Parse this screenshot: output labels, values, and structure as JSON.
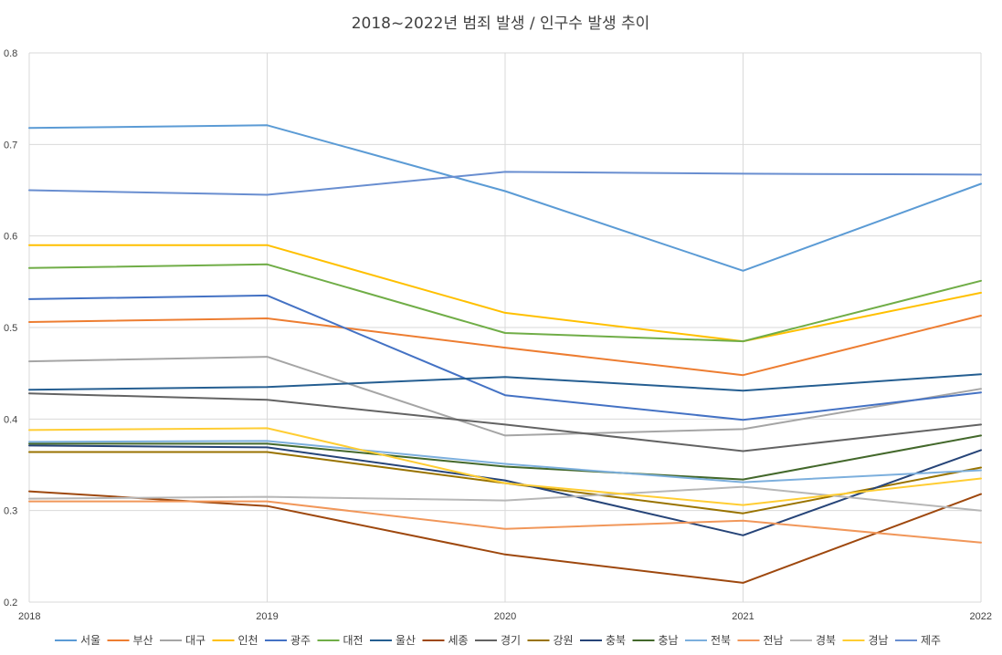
{
  "chart_data": {
    "type": "line",
    "title": "2018~2022년 범죄 발생 / 인구수 발생 추이",
    "x": [
      "2018",
      "2019",
      "2020",
      "2021",
      "2022"
    ],
    "ylim": [
      0.2,
      0.8
    ],
    "yticks": [
      "0.2",
      "0.3",
      "0.4",
      "0.5",
      "0.6",
      "0.7",
      "0.8"
    ],
    "xlabel": "",
    "ylabel": "",
    "grid": {
      "horizontal": true,
      "vertical": true
    },
    "legend_position": "bottom",
    "series": [
      {
        "name": "서울",
        "color": "#5B9BD5",
        "values": [
          0.718,
          0.721,
          0.649,
          0.562,
          0.657
        ]
      },
      {
        "name": "부산",
        "color": "#ED7D31",
        "values": [
          0.506,
          0.51,
          0.478,
          0.448,
          0.513
        ]
      },
      {
        "name": "대구",
        "color": "#A5A5A5",
        "values": [
          0.463,
          0.468,
          0.382,
          0.389,
          0.433
        ]
      },
      {
        "name": "인천",
        "color": "#FFC000",
        "values": [
          0.59,
          0.59,
          0.516,
          0.485,
          0.538
        ]
      },
      {
        "name": "광주",
        "color": "#4472C4",
        "values": [
          0.531,
          0.535,
          0.426,
          0.399,
          0.429
        ]
      },
      {
        "name": "대전",
        "color": "#70AD47",
        "values": [
          0.565,
          0.569,
          0.494,
          0.485,
          0.551
        ]
      },
      {
        "name": "울산",
        "color": "#255E91",
        "values": [
          0.432,
          0.435,
          0.446,
          0.431,
          0.449
        ]
      },
      {
        "name": "세종",
        "color": "#9E480E",
        "values": [
          0.321,
          0.305,
          0.252,
          0.221,
          0.318
        ]
      },
      {
        "name": "경기",
        "color": "#636363",
        "values": [
          0.428,
          0.421,
          0.394,
          0.365,
          0.394
        ]
      },
      {
        "name": "강원",
        "color": "#997300",
        "values": [
          0.364,
          0.364,
          0.33,
          0.297,
          0.347
        ]
      },
      {
        "name": "충북",
        "color": "#264478",
        "values": [
          0.371,
          0.369,
          0.333,
          0.273,
          0.366
        ]
      },
      {
        "name": "충남",
        "color": "#43682B",
        "values": [
          0.373,
          0.373,
          0.348,
          0.334,
          0.382
        ]
      },
      {
        "name": "전북",
        "color": "#7CAFDD",
        "values": [
          0.375,
          0.376,
          0.351,
          0.331,
          0.344
        ]
      },
      {
        "name": "전남",
        "color": "#F1975A",
        "values": [
          0.31,
          0.31,
          0.28,
          0.289,
          0.265
        ]
      },
      {
        "name": "경북",
        "color": "#B7B7B7",
        "values": [
          0.313,
          0.315,
          0.311,
          0.326,
          0.3
        ]
      },
      {
        "name": "경남",
        "color": "#FFCD33",
        "values": [
          0.388,
          0.39,
          0.33,
          0.306,
          0.335
        ]
      },
      {
        "name": "제주",
        "color": "#698ED0",
        "values": [
          0.65,
          0.645,
          0.67,
          0.668,
          0.667
        ]
      }
    ]
  }
}
